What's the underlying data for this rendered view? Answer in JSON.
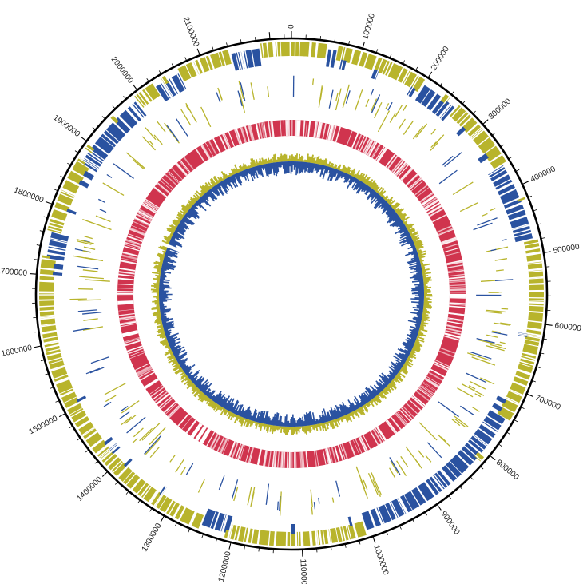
{
  "genome_map": {
    "genome_length": 2230000,
    "tick_labels": [
      "0",
      "100000",
      "200000",
      "300000",
      "400000",
      "500000",
      "600000",
      "700000",
      "800000",
      "900000",
      "1000000",
      "1100000",
      "1200000",
      "1300000",
      "1400000",
      "1500000",
      "1600000",
      "1700000",
      "1800000",
      "1900000",
      "2000000",
      "2100000"
    ],
    "tick_values": [
      0,
      100000,
      200000,
      300000,
      400000,
      500000,
      600000,
      700000,
      800000,
      900000,
      1000000,
      1100000,
      1200000,
      1300000,
      1400000,
      1500000,
      1600000,
      1700000,
      1800000,
      1900000,
      2000000,
      2100000
    ],
    "minor_tick_step": 20000,
    "colors": {
      "olive": "#b8b42c",
      "blue": "#2a52a0",
      "red": "#d0344e",
      "axis": "#000000"
    },
    "tracks": [
      {
        "name": "strand-orientation",
        "colors": [
          "olive",
          "blue"
        ],
        "switch_points": [
          0,
          0.02,
          0.025,
          0.09,
          0.115,
          0.16,
          0.215,
          0.33,
          0.45,
          0.54,
          0.56,
          0.77,
          0.79,
          0.835,
          0.89,
          0.905,
          0.925,
          0.96,
          0.975
        ]
      },
      {
        "name": "sparse-features"
      },
      {
        "name": "gene-density-red"
      },
      {
        "name": "gc-skew"
      }
    ]
  }
}
